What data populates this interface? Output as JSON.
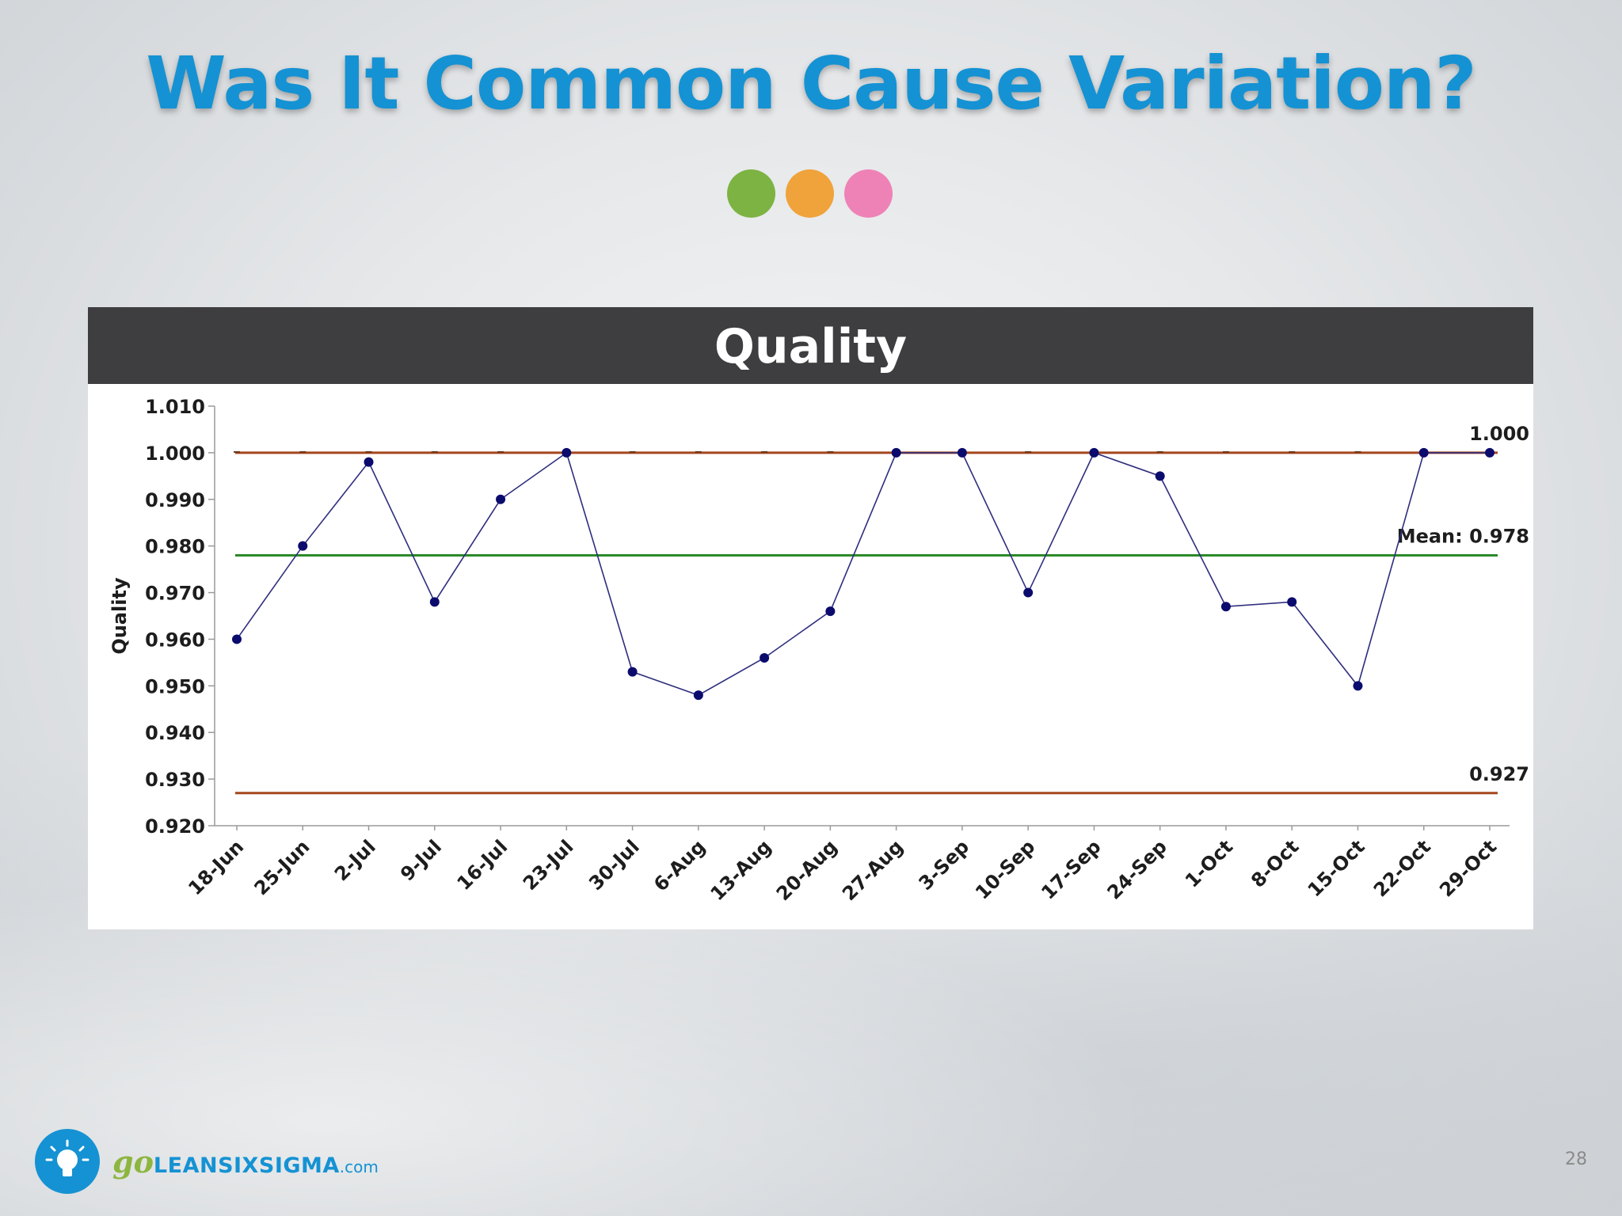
{
  "slide": {
    "title": "Was It Common Cause Variation?",
    "page_number": "28",
    "dot_colors": [
      "#7cb342",
      "#f0a33a",
      "#ee82b7"
    ]
  },
  "logo": {
    "icon": "lightbulb-icon",
    "prefix": "go",
    "name": "LEANSIXSIGMA",
    "suffix": ".com"
  },
  "chart_data": {
    "type": "line",
    "title": "Quality",
    "xlabel": "",
    "ylabel": "Quality",
    "categories": [
      "18-Jun",
      "25-Jun",
      "2-Jul",
      "9-Jul",
      "16-Jul",
      "23-Jul",
      "30-Jul",
      "6-Aug",
      "13-Aug",
      "20-Aug",
      "27-Aug",
      "3-Sep",
      "10-Sep",
      "17-Sep",
      "24-Sep",
      "1-Oct",
      "8-Oct",
      "15-Oct",
      "22-Oct",
      "29-Oct"
    ],
    "series": [
      {
        "values": [
          0.96,
          0.98,
          0.998,
          0.968,
          0.99,
          1.0,
          0.953,
          0.948,
          0.956,
          0.966,
          1.0,
          1.0,
          0.97,
          1.0,
          0.995,
          0.967,
          0.968,
          0.95,
          1.0,
          1.0
        ],
        "color": "#2e2d7e"
      }
    ],
    "reference_lines": [
      {
        "value": 1.0,
        "label": "1.000",
        "color": "#a4461c"
      },
      {
        "value": 0.978,
        "label": "Mean: 0.978",
        "color": "#2a8a2a"
      },
      {
        "value": 0.927,
        "label": "0.927",
        "color": "#a4461c"
      }
    ],
    "ylim": [
      0.92,
      1.01
    ],
    "yticks": [
      "0.920",
      "0.930",
      "0.940",
      "0.950",
      "0.960",
      "0.970",
      "0.980",
      "0.990",
      "1.000",
      "1.010"
    ],
    "grid": false,
    "legend": "none"
  }
}
